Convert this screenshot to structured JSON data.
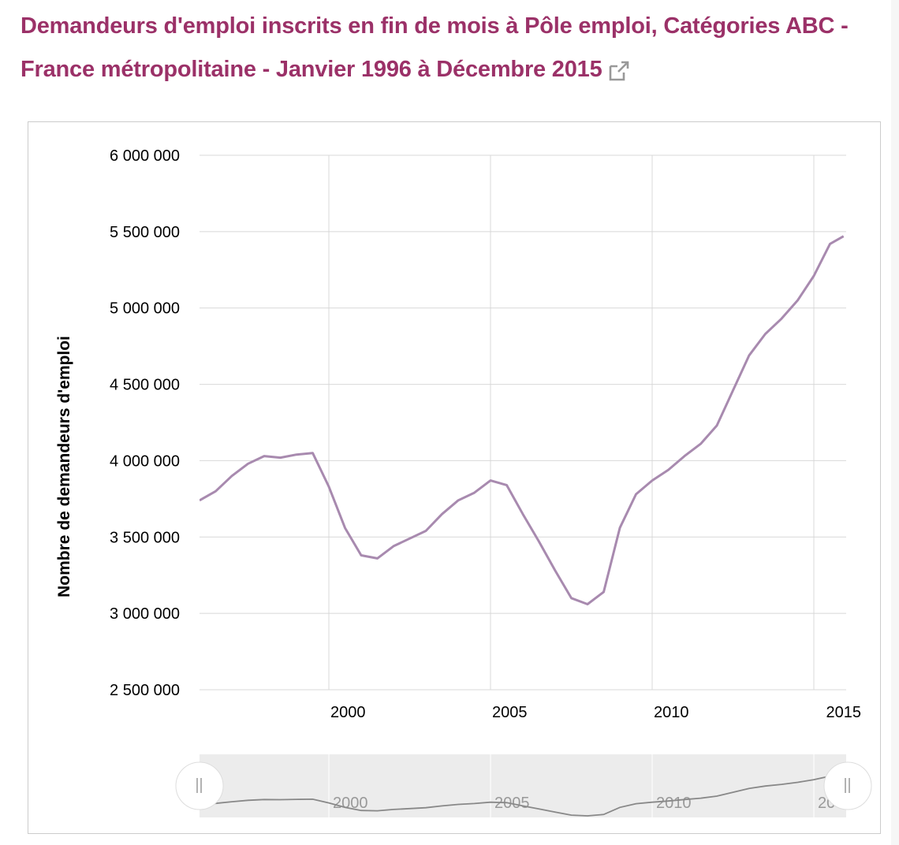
{
  "title": "Demandeurs d'emploi inscrits en fin de mois à Pôle emploi, Catégories ABC - France métropolitaine - Janvier 1996 à Décembre 2015",
  "title_link_icon": "external-link-icon",
  "colors": {
    "title": "#9b3168",
    "series": "#a88aaf",
    "navigator_series": "#888888",
    "grid": "#d8d8d8"
  },
  "chart_data": {
    "type": "line",
    "title": "Demandeurs d'emploi inscrits en fin de mois à Pôle emploi, Catégories ABC - France métropolitaine - Janvier 1996 à Décembre 2015",
    "xlabel": "",
    "ylabel": "Nombre de demandeurs d'emploi",
    "xlim": [
      1996,
      2016
    ],
    "ylim": [
      2500000,
      6000000
    ],
    "x_ticks": [
      2000,
      2005,
      2010,
      2015
    ],
    "x_tick_labels": [
      "2000",
      "2005",
      "2010",
      "2015"
    ],
    "y_ticks": [
      2500000,
      3000000,
      3500000,
      4000000,
      4500000,
      5000000,
      5500000,
      6000000
    ],
    "y_tick_labels": [
      "2 500 000",
      "3 000 000",
      "3 500 000",
      "4 000 000",
      "4 500 000",
      "5 000 000",
      "5 500 000",
      "6 000 000"
    ],
    "grid": true,
    "navigator": true,
    "navigator_labels": [
      "2000",
      "2005",
      "2010",
      "20"
    ],
    "series": [
      {
        "x": [
          1996.0,
          1996.5,
          1997.0,
          1997.5,
          1998.0,
          1998.5,
          1999.0,
          1999.5,
          2000.0,
          2000.5,
          2001.0,
          2001.5,
          2002.0,
          2002.5,
          2003.0,
          2003.5,
          2004.0,
          2004.5,
          2005.0,
          2005.5,
          2006.0,
          2006.5,
          2007.0,
          2007.5,
          2008.0,
          2008.5,
          2009.0,
          2009.5,
          2010.0,
          2010.5,
          2011.0,
          2011.5,
          2012.0,
          2012.5,
          2013.0,
          2013.5,
          2014.0,
          2014.5,
          2015.0,
          2015.5,
          2015.92
        ],
        "values": [
          3740000,
          3800000,
          3900000,
          3980000,
          4030000,
          4020000,
          4040000,
          4050000,
          3830000,
          3560000,
          3380000,
          3360000,
          3440000,
          3490000,
          3540000,
          3650000,
          3740000,
          3790000,
          3870000,
          3840000,
          3650000,
          3470000,
          3280000,
          3100000,
          3060000,
          3140000,
          3560000,
          3780000,
          3870000,
          3940000,
          4030000,
          4110000,
          4230000,
          4460000,
          4690000,
          4830000,
          4930000,
          5050000,
          5210000,
          5420000,
          5470000
        ]
      }
    ]
  }
}
